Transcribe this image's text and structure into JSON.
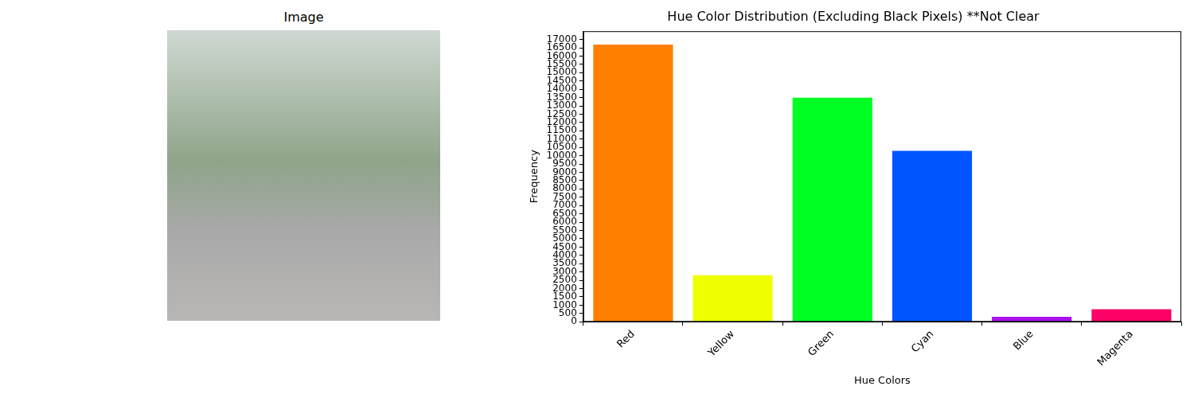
{
  "image_panel": {
    "title": "Image"
  },
  "chart_data": {
    "type": "bar",
    "title": "Hue Color Distribution (Excluding Black Pixels) **Not Clear",
    "x_label": "Hue Colors",
    "y_label": "Frequency",
    "categories": [
      "Red",
      "Yellow",
      "Green",
      "Cyan",
      "Blue",
      "Magenta"
    ],
    "values": [
      16700,
      2800,
      13500,
      10300,
      300,
      750
    ],
    "colors": [
      "#ff7f00",
      "#eeff00",
      "#00ff22",
      "#0055ff",
      "#aa11ee",
      "#ff0066"
    ],
    "ylim": [
      0,
      17500
    ],
    "yticks": [
      0,
      500,
      1000,
      1500,
      2000,
      2500,
      3000,
      3500,
      4000,
      4500,
      5000,
      5500,
      6000,
      6500,
      7000,
      7500,
      8000,
      8500,
      9000,
      9500,
      10000,
      10500,
      11000,
      11500,
      12000,
      12500,
      13000,
      13500,
      14000,
      14500,
      15000,
      15500,
      16000,
      16500,
      17000
    ],
    "grid": false
  }
}
